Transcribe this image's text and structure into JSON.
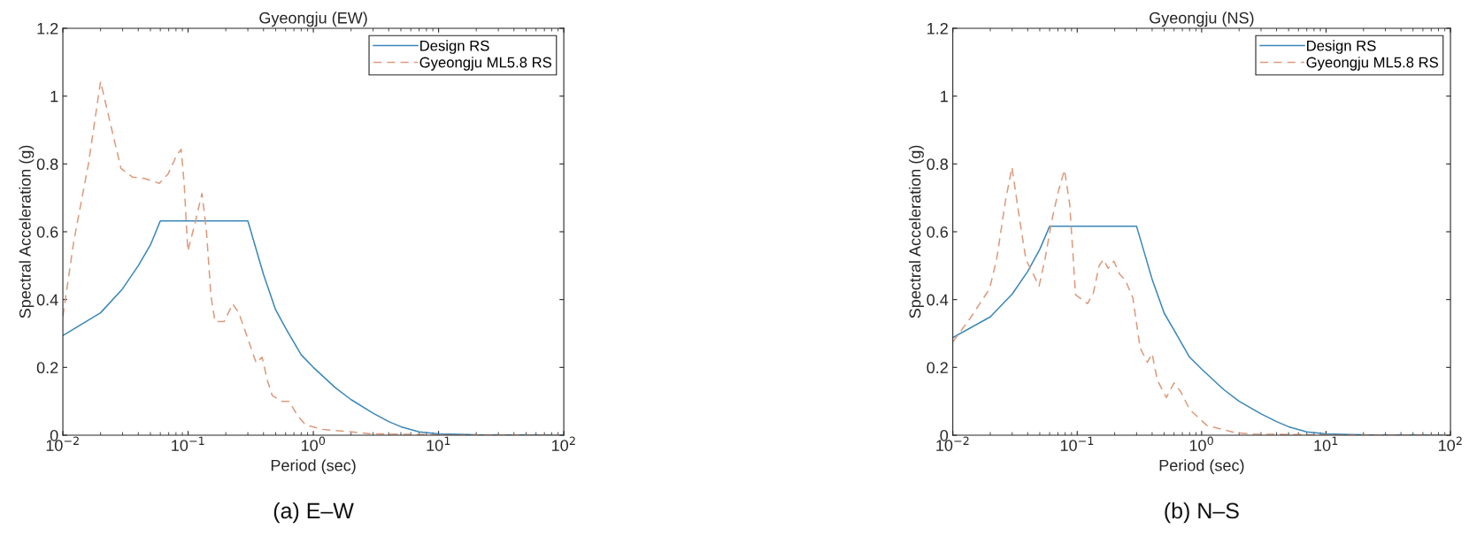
{
  "chart_data": [
    {
      "type": "line",
      "title": "Gyeongju (EW)",
      "xlabel": "Period (sec)",
      "ylabel": "Spectral Acceleration (g)",
      "annotations": [
        "(a) E–W"
      ],
      "log": "x",
      "xlim": [
        0.01,
        100
      ],
      "ylim": [
        0,
        1.2
      ],
      "xticks": [
        {
          "value": 0.01,
          "label": "10$^{−2}$"
        },
        {
          "value": 0.1,
          "label": "10$^{−1}$"
        },
        {
          "value": 1,
          "label": "10$^{0}$"
        },
        {
          "value": 10,
          "label": "10$^{1}$"
        },
        {
          "value": 100,
          "label": "10$^{2}$"
        }
      ],
      "yticks": [
        0,
        0.2,
        0.4,
        0.6,
        0.8,
        1,
        1.2
      ],
      "grid": false,
      "legend": "top right",
      "series": [
        {
          "name": "Design RS",
          "color": "#3a87b8",
          "line_style": "solid",
          "x": [
            0.01,
            0.02,
            0.03,
            0.04,
            0.05,
            0.06,
            0.3,
            0.4,
            0.5,
            0.6,
            0.8,
            1,
            1.5,
            2,
            3,
            4,
            5,
            7,
            10,
            20,
            100
          ],
          "values": [
            0.294,
            0.361,
            0.432,
            0.5,
            0.561,
            0.632,
            0.632,
            0.474,
            0.37,
            0.316,
            0.237,
            0.2,
            0.14,
            0.105,
            0.065,
            0.04,
            0.025,
            0.01,
            0.004,
            0.001,
            0
          ]
        },
        {
          "name": "Gyeongju ML5.8 RS",
          "color": "#dc9a7c",
          "line_style": "dashed",
          "x": [
            0.01,
            0.0122,
            0.016,
            0.02,
            0.0234,
            0.0291,
            0.0361,
            0.0448,
            0.059,
            0.0691,
            0.0812,
            0.088,
            0.093,
            0.0995,
            0.113,
            0.129,
            0.14,
            0.152,
            0.164,
            0.194,
            0.227,
            0.254,
            0.29,
            0.35,
            0.39,
            0.43,
            0.47,
            0.56,
            0.64,
            0.75,
            0.87,
            1.2,
            2.1,
            2.9,
            5,
            10,
            100
          ],
          "values": [
            0.35,
            0.57,
            0.8,
            1.043,
            0.935,
            0.787,
            0.761,
            0.757,
            0.743,
            0.77,
            0.826,
            0.843,
            0.743,
            0.543,
            0.622,
            0.713,
            0.604,
            0.413,
            0.335,
            0.335,
            0.387,
            0.361,
            0.3,
            0.213,
            0.23,
            0.161,
            0.117,
            0.1,
            0.1,
            0.057,
            0.03,
            0.017,
            0.009,
            0.004,
            0.003,
            0.001,
            0
          ]
        }
      ]
    },
    {
      "type": "line",
      "title": "Gyeongju (NS)",
      "xlabel": "Period (sec)",
      "ylabel": "Spectral Acceleration (g)",
      "annotations": [
        "(b) N–S"
      ],
      "log": "x",
      "xlim": [
        0.01,
        100
      ],
      "ylim": [
        0,
        1.2
      ],
      "xticks": [
        {
          "value": 0.01,
          "label": "10$^{−2}$"
        },
        {
          "value": 0.1,
          "label": "10$^{−1}$"
        },
        {
          "value": 1,
          "label": "10$^{0}$"
        },
        {
          "value": 10,
          "label": "10$^{1}$"
        },
        {
          "value": 100,
          "label": "10$^{2}$"
        }
      ],
      "yticks": [
        0,
        0.2,
        0.4,
        0.6,
        0.8,
        1,
        1.2
      ],
      "grid": false,
      "legend": "top right",
      "series": [
        {
          "name": "Design RS",
          "color": "#3a87b8",
          "line_style": "solid",
          "x": [
            0.01,
            0.02,
            0.03,
            0.04,
            0.05,
            0.06,
            0.3,
            0.4,
            0.5,
            0.6,
            0.8,
            1,
            1.5,
            2,
            3,
            4,
            5,
            7,
            10,
            20,
            100
          ],
          "values": [
            0.288,
            0.349,
            0.416,
            0.483,
            0.548,
            0.616,
            0.616,
            0.46,
            0.36,
            0.31,
            0.23,
            0.195,
            0.135,
            0.1,
            0.063,
            0.04,
            0.025,
            0.01,
            0.004,
            0.001,
            0
          ]
        },
        {
          "name": "Gyeongju ML5.8 RS",
          "color": "#dc9a7c",
          "line_style": "dashed",
          "x": [
            0.01,
            0.0138,
            0.0197,
            0.0225,
            0.0265,
            0.0299,
            0.0338,
            0.0387,
            0.0494,
            0.055,
            0.063,
            0.0703,
            0.079,
            0.087,
            0.097,
            0.121,
            0.135,
            0.15,
            0.163,
            0.177,
            0.197,
            0.22,
            0.244,
            0.28,
            0.32,
            0.366,
            0.4,
            0.44,
            0.52,
            0.6,
            0.68,
            0.8,
            1.1,
            1.9,
            2.7,
            5,
            10,
            100
          ],
          "values": [
            0.275,
            0.345,
            0.431,
            0.518,
            0.691,
            0.79,
            0.656,
            0.518,
            0.44,
            0.518,
            0.639,
            0.717,
            0.782,
            0.682,
            0.414,
            0.388,
            0.42,
            0.5,
            0.518,
            0.492,
            0.513,
            0.474,
            0.457,
            0.405,
            0.258,
            0.215,
            0.24,
            0.163,
            0.111,
            0.154,
            0.128,
            0.076,
            0.029,
            0.007,
            0.003,
            0.002,
            0.001,
            0
          ]
        }
      ]
    }
  ]
}
